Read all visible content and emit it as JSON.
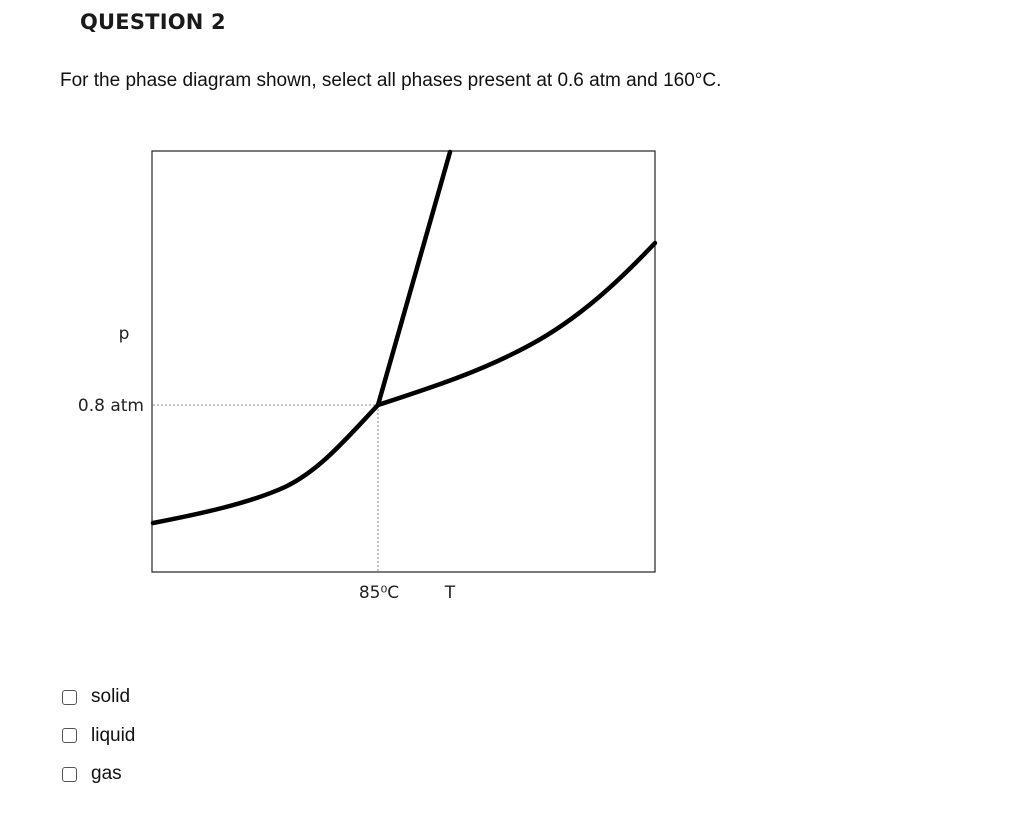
{
  "question": {
    "title": "QUESTION 2",
    "text": "For the phase diagram shown, select all phases present at 0.6 atm and 160°C."
  },
  "diagram": {
    "y_axis_label": "p",
    "pressure_tick": "0.8 atm",
    "temperature_tick": "85⁰C",
    "x_axis_label": "T"
  },
  "options": [
    {
      "label": "solid",
      "checked": false
    },
    {
      "label": "liquid",
      "checked": false
    },
    {
      "label": "gas",
      "checked": false
    }
  ]
}
